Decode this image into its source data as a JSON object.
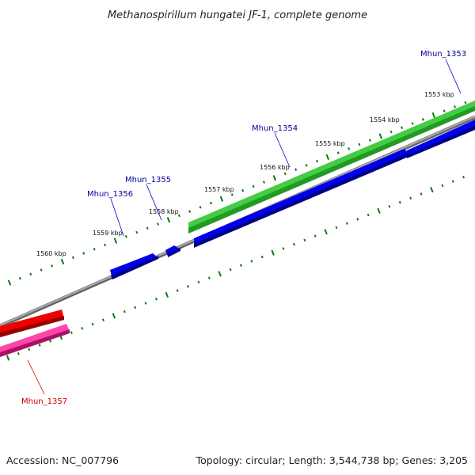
{
  "title": "Methanospirillum hungatei JF-1, complete genome",
  "footer": {
    "accession": "Accession: NC_007796",
    "summary": "Topology: circular; Length: 3,544,738 bp; Genes: 3,205"
  },
  "ticks": [
    "1553 kbp",
    "1554 kbp",
    "1555 kbp",
    "1556 kbp",
    "1557 kbp",
    "1558 kbp",
    "1559 kbp",
    "1560 kbp"
  ],
  "genes": [
    {
      "name": "Mhun_1353",
      "track": "reverse-cds",
      "color": "#0000cc"
    },
    {
      "name": "Mhun_1354",
      "track": "reverse-cds",
      "color": "#0000cc"
    },
    {
      "name": "Mhun_1355",
      "track": "reverse-cds",
      "color": "#0000cc"
    },
    {
      "name": "Mhun_1356",
      "track": "reverse-cds",
      "color": "#0000cc"
    },
    {
      "name": "Mhun_1357",
      "track": "forward-cds",
      "color": "#dd0000"
    }
  ],
  "colors": {
    "forward_cds": "#33bb33",
    "reverse_cds": "#0000dd",
    "forward_cds_label": "#000099",
    "red_cds": "#ee0000",
    "pink_cds": "#ee3399",
    "backbone": "#888888",
    "ticks": "#117711",
    "gene_label_blue": "#000099",
    "gene_label_red": "#cc0000"
  }
}
